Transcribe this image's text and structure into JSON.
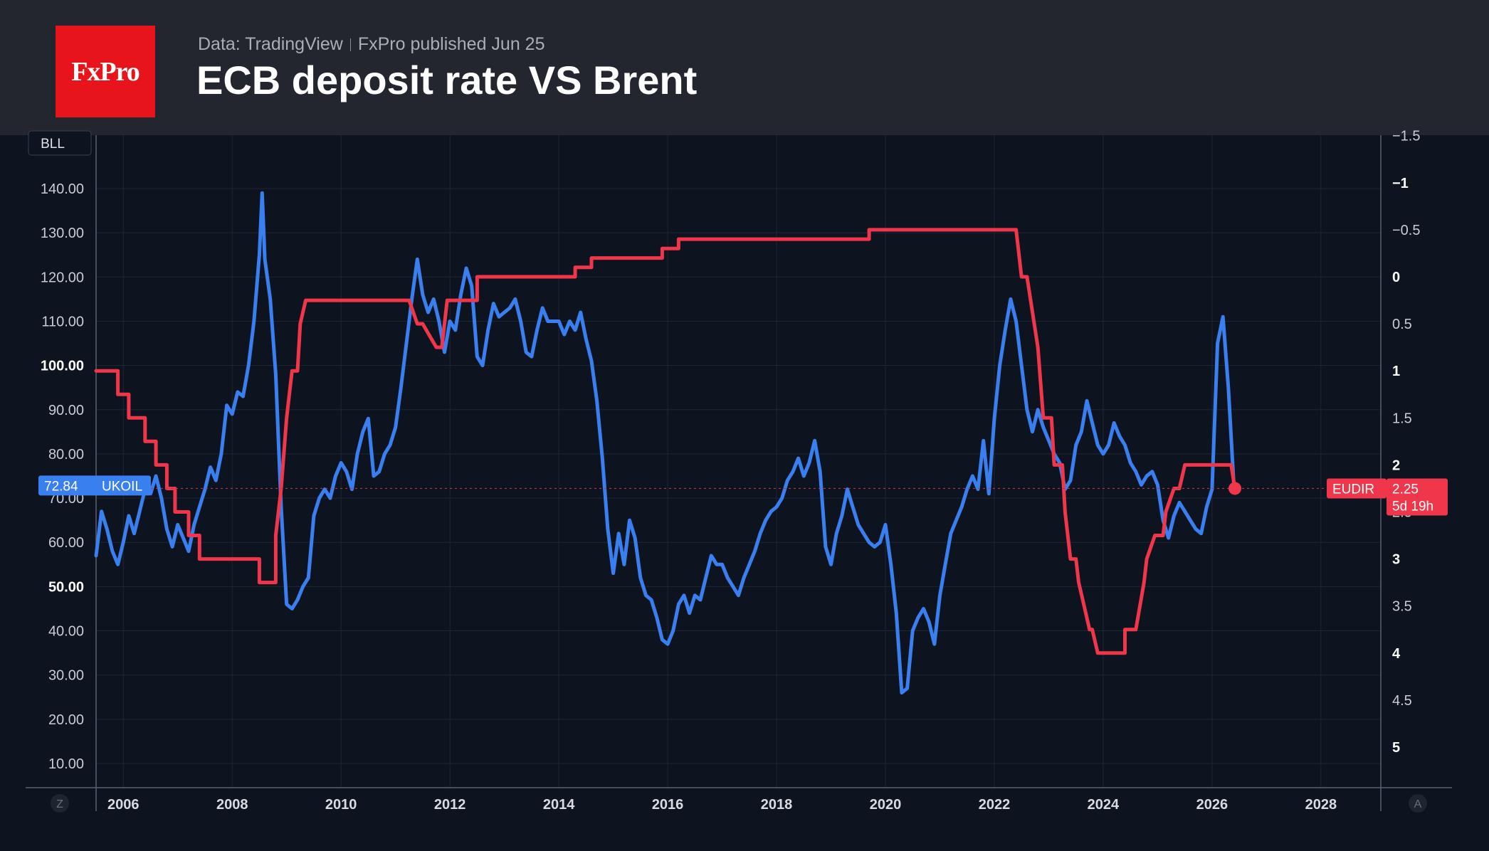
{
  "header": {
    "logo_text": "FxPro",
    "source": "Data: TradingView",
    "publisher": "FxPro published Jun 25",
    "title": "ECB deposit rate VS Brent"
  },
  "colors": {
    "background": "#0d1420",
    "header_bg": "#23262f",
    "brand": "#e8141b",
    "brent_series": "#3a7ff0",
    "ecb_series": "#f0364a"
  },
  "chart_data": {
    "type": "line",
    "left_axis": {
      "unit_badge": "BLL",
      "ticks": [
        "140.00",
        "130.00",
        "120.00",
        "110.00",
        "100.00",
        "90.00",
        "80.00",
        "70.00",
        "60.00",
        "50.00",
        "40.00",
        "30.00",
        "20.00",
        "10.00"
      ],
      "ylim": [
        0,
        145
      ]
    },
    "right_axis": {
      "inverted": true,
      "ticks": [
        "−1.5",
        "−1",
        "−0.5",
        "0",
        "0.5",
        "1",
        "1.5",
        "2",
        "2.5",
        "3",
        "3.5",
        "4",
        "4.5",
        "5"
      ],
      "ylim": [
        -1.5,
        5.4
      ]
    },
    "x_axis": {
      "ticks": [
        "2006",
        "2008",
        "2010",
        "2012",
        "2014",
        "2016",
        "2018",
        "2020",
        "2022",
        "2024",
        "2026",
        "2028"
      ],
      "xlim": [
        2005.5,
        2029.1
      ]
    },
    "series": [
      {
        "name": "UKOIL",
        "axis": "left",
        "last_value_label": "72.84",
        "points": [
          [
            2005.5,
            57
          ],
          [
            2005.6,
            67
          ],
          [
            2005.7,
            63
          ],
          [
            2005.8,
            58
          ],
          [
            2005.9,
            55
          ],
          [
            2006.0,
            60
          ],
          [
            2006.1,
            66
          ],
          [
            2006.2,
            62
          ],
          [
            2006.3,
            67
          ],
          [
            2006.4,
            72
          ],
          [
            2006.5,
            71
          ],
          [
            2006.6,
            75
          ],
          [
            2006.7,
            70
          ],
          [
            2006.8,
            63
          ],
          [
            2006.9,
            59
          ],
          [
            2007.0,
            64
          ],
          [
            2007.1,
            61
          ],
          [
            2007.2,
            58
          ],
          [
            2007.3,
            64
          ],
          [
            2007.4,
            68
          ],
          [
            2007.5,
            72
          ],
          [
            2007.6,
            77
          ],
          [
            2007.7,
            74
          ],
          [
            2007.8,
            80
          ],
          [
            2007.9,
            91
          ],
          [
            2008.0,
            89
          ],
          [
            2008.1,
            94
          ],
          [
            2008.2,
            93
          ],
          [
            2008.3,
            100
          ],
          [
            2008.4,
            110
          ],
          [
            2008.5,
            125
          ],
          [
            2008.55,
            139
          ],
          [
            2008.6,
            124
          ],
          [
            2008.7,
            115
          ],
          [
            2008.8,
            98
          ],
          [
            2008.9,
            68
          ],
          [
            2009.0,
            46
          ],
          [
            2009.1,
            45
          ],
          [
            2009.2,
            47
          ],
          [
            2009.3,
            50
          ],
          [
            2009.4,
            52
          ],
          [
            2009.5,
            66
          ],
          [
            2009.6,
            70
          ],
          [
            2009.7,
            72
          ],
          [
            2009.8,
            70
          ],
          [
            2009.9,
            75
          ],
          [
            2010.0,
            78
          ],
          [
            2010.1,
            76
          ],
          [
            2010.2,
            72
          ],
          [
            2010.3,
            80
          ],
          [
            2010.4,
            85
          ],
          [
            2010.5,
            88
          ],
          [
            2010.6,
            75
          ],
          [
            2010.7,
            76
          ],
          [
            2010.8,
            80
          ],
          [
            2010.9,
            82
          ],
          [
            2011.0,
            86
          ],
          [
            2011.1,
            95
          ],
          [
            2011.2,
            105
          ],
          [
            2011.3,
            115
          ],
          [
            2011.4,
            124
          ],
          [
            2011.5,
            116
          ],
          [
            2011.6,
            112
          ],
          [
            2011.7,
            115
          ],
          [
            2011.8,
            110
          ],
          [
            2011.9,
            103
          ],
          [
            2012.0,
            110
          ],
          [
            2012.1,
            108
          ],
          [
            2012.2,
            116
          ],
          [
            2012.3,
            122
          ],
          [
            2012.4,
            118
          ],
          [
            2012.5,
            102
          ],
          [
            2012.6,
            100
          ],
          [
            2012.7,
            108
          ],
          [
            2012.8,
            114
          ],
          [
            2012.9,
            111
          ],
          [
            2013.0,
            112
          ],
          [
            2013.1,
            113
          ],
          [
            2013.2,
            115
          ],
          [
            2013.3,
            110
          ],
          [
            2013.4,
            103
          ],
          [
            2013.5,
            102
          ],
          [
            2013.6,
            108
          ],
          [
            2013.7,
            113
          ],
          [
            2013.8,
            110
          ],
          [
            2013.9,
            110
          ],
          [
            2014.0,
            110
          ],
          [
            2014.1,
            107
          ],
          [
            2014.2,
            110
          ],
          [
            2014.3,
            108
          ],
          [
            2014.4,
            112
          ],
          [
            2014.5,
            106
          ],
          [
            2014.6,
            101
          ],
          [
            2014.7,
            92
          ],
          [
            2014.8,
            79
          ],
          [
            2014.9,
            63
          ],
          [
            2015.0,
            53
          ],
          [
            2015.1,
            62
          ],
          [
            2015.2,
            55
          ],
          [
            2015.3,
            65
          ],
          [
            2015.4,
            61
          ],
          [
            2015.5,
            52
          ],
          [
            2015.6,
            48
          ],
          [
            2015.7,
            47
          ],
          [
            2015.8,
            43
          ],
          [
            2015.9,
            38
          ],
          [
            2016.0,
            37
          ],
          [
            2016.1,
            40
          ],
          [
            2016.2,
            46
          ],
          [
            2016.3,
            48
          ],
          [
            2016.4,
            44
          ],
          [
            2016.5,
            48
          ],
          [
            2016.6,
            47
          ],
          [
            2016.7,
            52
          ],
          [
            2016.8,
            57
          ],
          [
            2016.9,
            55
          ],
          [
            2017.0,
            55
          ],
          [
            2017.1,
            52
          ],
          [
            2017.2,
            50
          ],
          [
            2017.3,
            48
          ],
          [
            2017.4,
            52
          ],
          [
            2017.5,
            55
          ],
          [
            2017.6,
            58
          ],
          [
            2017.7,
            62
          ],
          [
            2017.8,
            65
          ],
          [
            2017.9,
            67
          ],
          [
            2018.0,
            68
          ],
          [
            2018.1,
            70
          ],
          [
            2018.2,
            74
          ],
          [
            2018.3,
            76
          ],
          [
            2018.4,
            79
          ],
          [
            2018.5,
            75
          ],
          [
            2018.6,
            78
          ],
          [
            2018.7,
            83
          ],
          [
            2018.8,
            76
          ],
          [
            2018.9,
            59
          ],
          [
            2019.0,
            55
          ],
          [
            2019.1,
            62
          ],
          [
            2019.2,
            66
          ],
          [
            2019.3,
            72
          ],
          [
            2019.4,
            68
          ],
          [
            2019.5,
            64
          ],
          [
            2019.6,
            62
          ],
          [
            2019.7,
            60
          ],
          [
            2019.8,
            59
          ],
          [
            2019.9,
            60
          ],
          [
            2020.0,
            64
          ],
          [
            2020.1,
            55
          ],
          [
            2020.2,
            44
          ],
          [
            2020.3,
            26
          ],
          [
            2020.4,
            27
          ],
          [
            2020.5,
            40
          ],
          [
            2020.6,
            43
          ],
          [
            2020.7,
            45
          ],
          [
            2020.8,
            42
          ],
          [
            2020.9,
            37
          ],
          [
            2021.0,
            48
          ],
          [
            2021.1,
            55
          ],
          [
            2021.2,
            62
          ],
          [
            2021.3,
            65
          ],
          [
            2021.4,
            68
          ],
          [
            2021.5,
            72
          ],
          [
            2021.6,
            75
          ],
          [
            2021.7,
            72
          ],
          [
            2021.8,
            83
          ],
          [
            2021.9,
            71
          ],
          [
            2022.0,
            88
          ],
          [
            2022.1,
            100
          ],
          [
            2022.2,
            108
          ],
          [
            2022.3,
            115
          ],
          [
            2022.4,
            110
          ],
          [
            2022.5,
            100
          ],
          [
            2022.6,
            90
          ],
          [
            2022.7,
            85
          ],
          [
            2022.8,
            90
          ],
          [
            2022.9,
            86
          ],
          [
            2023.0,
            83
          ],
          [
            2023.1,
            80
          ],
          [
            2023.2,
            78
          ],
          [
            2023.3,
            72
          ],
          [
            2023.4,
            74
          ],
          [
            2023.5,
            82
          ],
          [
            2023.6,
            85
          ],
          [
            2023.7,
            92
          ],
          [
            2023.8,
            87
          ],
          [
            2023.9,
            82
          ],
          [
            2024.0,
            80
          ],
          [
            2024.1,
            82
          ],
          [
            2024.2,
            87
          ],
          [
            2024.3,
            84
          ],
          [
            2024.4,
            82
          ],
          [
            2024.5,
            78
          ],
          [
            2024.6,
            76
          ],
          [
            2024.7,
            73
          ],
          [
            2024.8,
            75
          ],
          [
            2024.9,
            76
          ],
          [
            2025.0,
            73
          ],
          [
            2025.1,
            65
          ],
          [
            2025.2,
            61
          ],
          [
            2025.3,
            66
          ],
          [
            2025.4,
            69
          ],
          [
            2025.5,
            67
          ],
          [
            2025.6,
            65
          ],
          [
            2025.7,
            63
          ],
          [
            2025.8,
            62
          ],
          [
            2025.9,
            68
          ],
          [
            2026.0,
            72
          ],
          [
            2026.1,
            105
          ],
          [
            2026.2,
            111
          ],
          [
            2026.3,
            95
          ],
          [
            2026.4,
            73
          ]
        ]
      },
      {
        "name": "EUDIR",
        "axis": "right",
        "last_value_label": "2.25",
        "countdown": "5d 19h",
        "points": [
          [
            2005.5,
            1.0
          ],
          [
            2005.9,
            1.0
          ],
          [
            2005.9,
            1.25
          ],
          [
            2006.1,
            1.25
          ],
          [
            2006.1,
            1.5
          ],
          [
            2006.4,
            1.5
          ],
          [
            2006.4,
            1.75
          ],
          [
            2006.6,
            1.75
          ],
          [
            2006.6,
            2.0
          ],
          [
            2006.8,
            2.0
          ],
          [
            2006.8,
            2.25
          ],
          [
            2006.95,
            2.25
          ],
          [
            2006.95,
            2.5
          ],
          [
            2007.2,
            2.5
          ],
          [
            2007.2,
            2.75
          ],
          [
            2007.4,
            2.75
          ],
          [
            2007.4,
            3.0
          ],
          [
            2008.5,
            3.0
          ],
          [
            2008.5,
            3.25
          ],
          [
            2008.8,
            3.25
          ],
          [
            2008.8,
            2.75
          ],
          [
            2008.9,
            2.25
          ],
          [
            2009.0,
            1.5
          ],
          [
            2009.1,
            1.0
          ],
          [
            2009.2,
            1.0
          ],
          [
            2009.25,
            0.5
          ],
          [
            2009.35,
            0.25
          ],
          [
            2011.25,
            0.25
          ],
          [
            2011.4,
            0.5
          ],
          [
            2011.5,
            0.5
          ],
          [
            2011.75,
            0.75
          ],
          [
            2011.85,
            0.75
          ],
          [
            2011.9,
            0.5
          ],
          [
            2011.95,
            0.25
          ],
          [
            2012.5,
            0.25
          ],
          [
            2012.5,
            0.0
          ],
          [
            2014.3,
            0.0
          ],
          [
            2014.3,
            -0.1
          ],
          [
            2014.6,
            -0.1
          ],
          [
            2014.6,
            -0.2
          ],
          [
            2015.9,
            -0.2
          ],
          [
            2015.9,
            -0.3
          ],
          [
            2016.2,
            -0.3
          ],
          [
            2016.2,
            -0.4
          ],
          [
            2019.7,
            -0.4
          ],
          [
            2019.7,
            -0.5
          ],
          [
            2022.4,
            -0.5
          ],
          [
            2022.5,
            0.0
          ],
          [
            2022.6,
            0.0
          ],
          [
            2022.8,
            0.75
          ],
          [
            2022.9,
            1.5
          ],
          [
            2023.05,
            1.5
          ],
          [
            2023.1,
            2.0
          ],
          [
            2023.25,
            2.0
          ],
          [
            2023.3,
            2.5
          ],
          [
            2023.4,
            3.0
          ],
          [
            2023.5,
            3.0
          ],
          [
            2023.55,
            3.25
          ],
          [
            2023.65,
            3.5
          ],
          [
            2023.75,
            3.75
          ],
          [
            2023.8,
            3.75
          ],
          [
            2023.9,
            4.0
          ],
          [
            2024.4,
            4.0
          ],
          [
            2024.4,
            3.75
          ],
          [
            2024.6,
            3.75
          ],
          [
            2024.75,
            3.25
          ],
          [
            2024.8,
            3.0
          ],
          [
            2024.95,
            2.75
          ],
          [
            2025.1,
            2.75
          ],
          [
            2025.15,
            2.5
          ],
          [
            2025.3,
            2.25
          ],
          [
            2025.4,
            2.25
          ],
          [
            2025.5,
            2.0
          ],
          [
            2026.35,
            2.0
          ],
          [
            2026.42,
            2.25
          ]
        ]
      }
    ],
    "axis_corner_labels": [
      "Z",
      "A"
    ]
  }
}
